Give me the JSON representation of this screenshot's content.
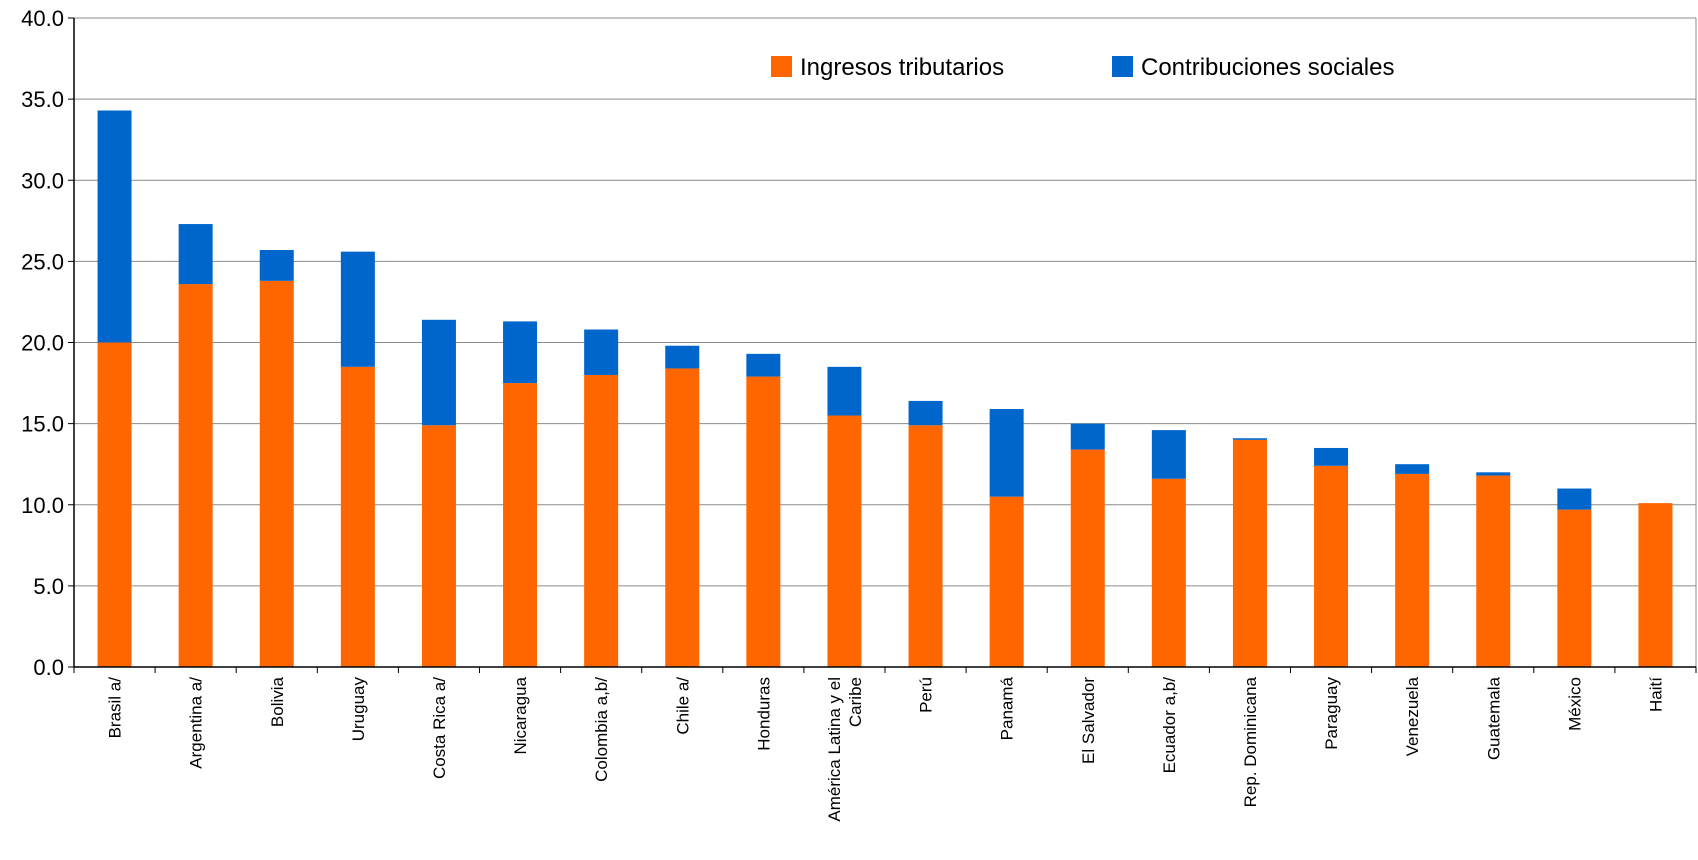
{
  "chart_data": {
    "type": "bar",
    "stacked": true,
    "title": "",
    "xlabel": "",
    "ylabel": "",
    "ylim": [
      0,
      40
    ],
    "yticks": [
      "0.0",
      "5.0",
      "10.0",
      "15.0",
      "20.0",
      "25.0",
      "30.0",
      "35.0",
      "40.0"
    ],
    "grid": true,
    "legend_position": "top-right",
    "categories": [
      [
        "Brasil a/"
      ],
      [
        "Argentina a/"
      ],
      [
        "Bolivia"
      ],
      [
        "Uruguay"
      ],
      [
        "Costa Rica a/"
      ],
      [
        "Nicaragua"
      ],
      [
        "Colombia a,b/"
      ],
      [
        "Chile a/"
      ],
      [
        "Honduras"
      ],
      [
        "América Latina y el",
        "Caribe"
      ],
      [
        "Perú"
      ],
      [
        "Panamá"
      ],
      [
        "El Salvador"
      ],
      [
        "Ecuador a,b/"
      ],
      [
        "Rep. Dominicana"
      ],
      [
        "Paraguay"
      ],
      [
        "Venezuela"
      ],
      [
        "Guatemala"
      ],
      [
        "México"
      ],
      [
        "Haití"
      ]
    ],
    "series": [
      {
        "name": "Ingresos tributarios",
        "color": "#FF6600",
        "values": [
          20.0,
          23.6,
          23.8,
          18.5,
          14.9,
          17.5,
          18.0,
          18.4,
          17.9,
          15.5,
          14.9,
          10.5,
          13.4,
          11.6,
          14.0,
          12.4,
          11.9,
          11.8,
          9.7,
          10.1
        ]
      },
      {
        "name": "Contribuciones sociales",
        "color": "#0066CC",
        "values": [
          14.3,
          3.7,
          1.9,
          7.1,
          6.5,
          3.8,
          2.8,
          1.4,
          1.4,
          3.0,
          1.5,
          5.4,
          1.6,
          3.0,
          0.1,
          1.1,
          0.6,
          0.2,
          1.3,
          0.0
        ]
      }
    ]
  }
}
